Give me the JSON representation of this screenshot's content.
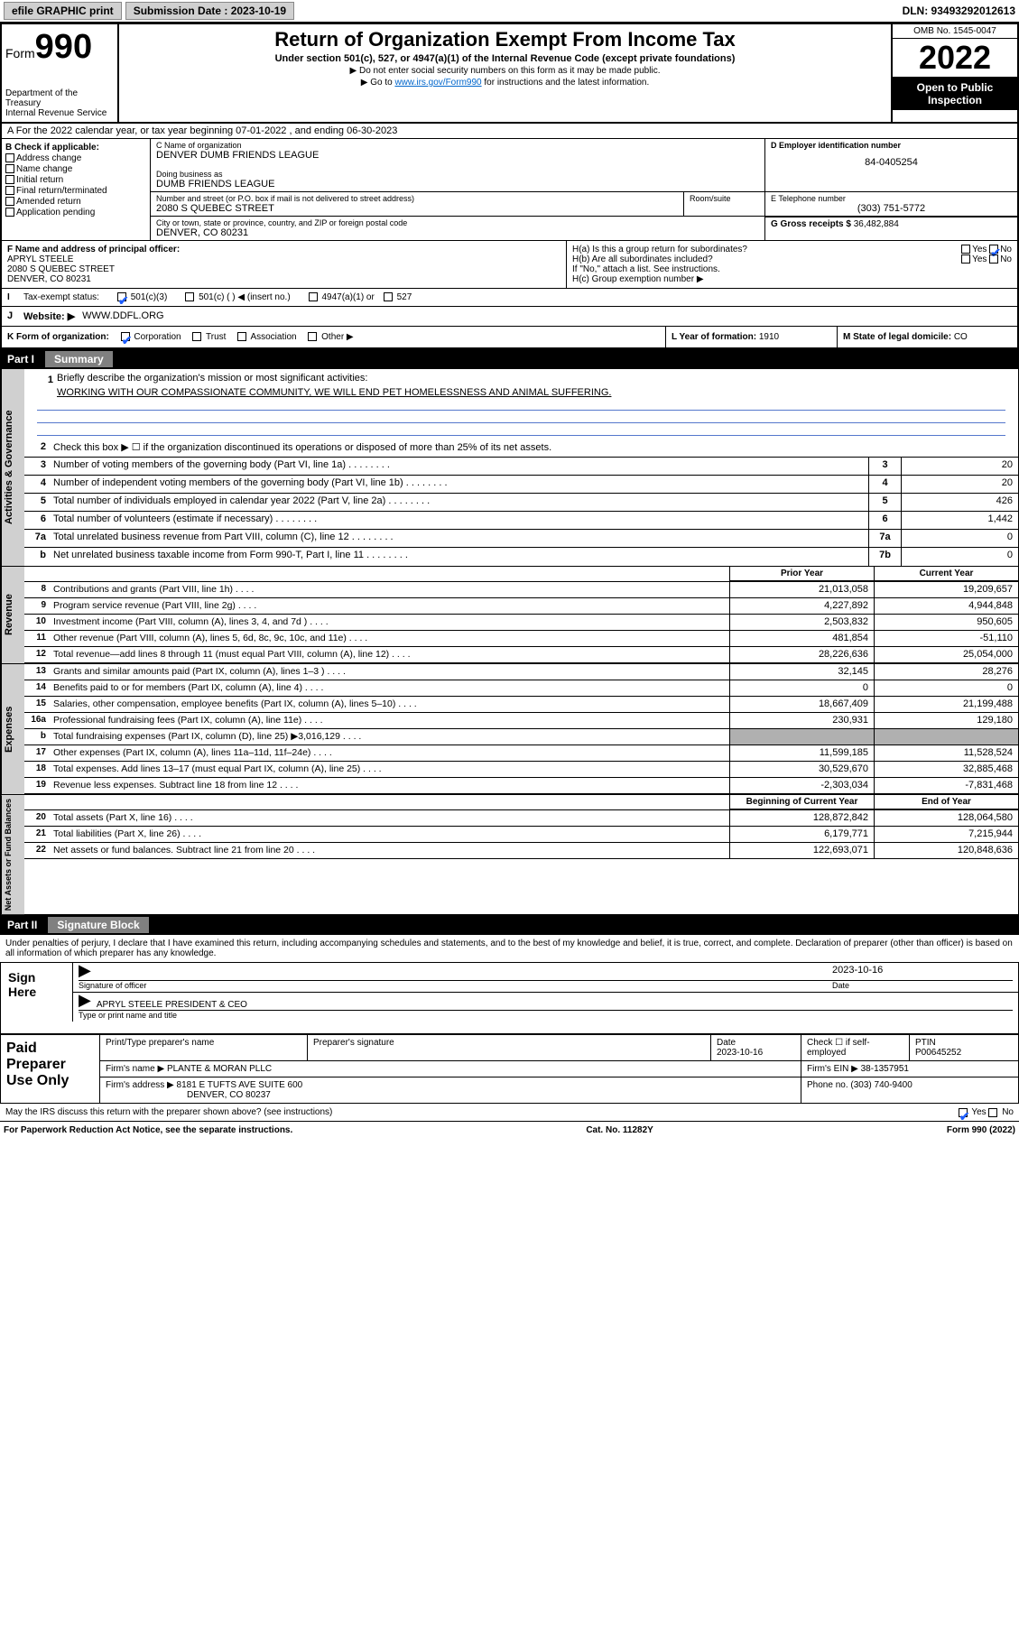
{
  "header": {
    "efile": "efile GRAPHIC print",
    "submission_label": "Submission Date : 2023-10-19",
    "dln": "DLN: 93493292012613"
  },
  "form_header": {
    "form_label": "Form",
    "form_number": "990",
    "title": "Return of Organization Exempt From Income Tax",
    "subtitle": "Under section 501(c), 527, or 4947(a)(1) of the Internal Revenue Code (except private foundations)",
    "note1": "▶ Do not enter social security numbers on this form as it may be made public.",
    "note2_pre": "▶ Go to ",
    "note2_link": "www.irs.gov/Form990",
    "note2_post": " for instructions and the latest information.",
    "dept": "Department of the Treasury\nInternal Revenue Service",
    "omb": "OMB No. 1545-0047",
    "year": "2022",
    "inspection": "Open to Public Inspection"
  },
  "section_a": {
    "tax_year_line": "A For the 2022 calendar year, or tax year beginning 07-01-2022    , and ending 06-30-2023",
    "b_label": "B Check if applicable:",
    "b_items": [
      "Address change",
      "Name change",
      "Initial return",
      "Final return/terminated",
      "Amended return",
      "Application pending"
    ],
    "c_label": "C Name of organization",
    "c_name": "DENVER DUMB FRIENDS LEAGUE",
    "dba_label": "Doing business as",
    "dba": "DUMB FRIENDS LEAGUE",
    "addr_label": "Number and street (or P.O. box if mail is not delivered to street address)",
    "room_label": "Room/suite",
    "addr": "2080 S QUEBEC STREET",
    "city_label": "City or town, state or province, country, and ZIP or foreign postal code",
    "city": "DENVER, CO  80231",
    "d_label": "D Employer identification number",
    "d_val": "84-0405254",
    "e_label": "E Telephone number",
    "e_val": "(303) 751-5772",
    "g_label": "G Gross receipts $",
    "g_val": "36,482,884",
    "f_label": "F Name and address of principal officer:",
    "f_name": "APRYL STEELE",
    "f_addr1": "2080 S QUEBEC STREET",
    "f_addr2": "DENVER, CO  80231",
    "ha_label": "H(a)  Is this a group return for subordinates?",
    "hb_label": "H(b)  Are all subordinates included?",
    "hb_note": "If \"No,\" attach a list. See instructions.",
    "hc_label": "H(c)  Group exemption number ▶",
    "i_label": "Tax-exempt status:",
    "i_501c3": "501(c)(3)",
    "i_501c": "501(c) (   ) ◀ (insert no.)",
    "i_4947": "4947(a)(1) or",
    "i_527": "527",
    "j_label": "Website: ▶",
    "j_val": "WWW.DDFL.ORG",
    "k_label": "K Form of organization:",
    "k_opts": [
      "Corporation",
      "Trust",
      "Association",
      "Other ▶"
    ],
    "l_label": "L Year of formation:",
    "l_val": "1910",
    "m_label": "M State of legal domicile:",
    "m_val": "CO",
    "yes": "Yes",
    "no": "No"
  },
  "part1": {
    "label": "Part I",
    "title": "Summary",
    "line1_label": "Briefly describe the organization's mission or most significant activities:",
    "line1_val": "WORKING WITH OUR COMPASSIONATE COMMUNITY, WE WILL END PET HOMELESSNESS AND ANIMAL SUFFERING.",
    "line2": "Check this box ▶ ☐  if the organization discontinued its operations or disposed of more than 25% of its net assets.",
    "governance_label": "Activities & Governance",
    "revenue_label": "Revenue",
    "expenses_label": "Expenses",
    "netassets_label": "Net Assets or Fund Balances",
    "gov_lines": [
      {
        "n": "3",
        "t": "Number of voting members of the governing body (Part VI, line 1a)",
        "box": "3",
        "v": "20"
      },
      {
        "n": "4",
        "t": "Number of independent voting members of the governing body (Part VI, line 1b)",
        "box": "4",
        "v": "20"
      },
      {
        "n": "5",
        "t": "Total number of individuals employed in calendar year 2022 (Part V, line 2a)",
        "box": "5",
        "v": "426"
      },
      {
        "n": "6",
        "t": "Total number of volunteers (estimate if necessary)",
        "box": "6",
        "v": "1,442"
      },
      {
        "n": "7a",
        "t": "Total unrelated business revenue from Part VIII, column (C), line 12",
        "box": "7a",
        "v": "0"
      },
      {
        "n": "b",
        "t": "Net unrelated business taxable income from Form 990-T, Part I, line 11",
        "box": "7b",
        "v": "0"
      }
    ],
    "prior_year": "Prior Year",
    "current_year": "Current Year",
    "boy": "Beginning of Current Year",
    "eoy": "End of Year",
    "rev_lines": [
      {
        "n": "8",
        "t": "Contributions and grants (Part VIII, line 1h)",
        "p": "21,013,058",
        "c": "19,209,657"
      },
      {
        "n": "9",
        "t": "Program service revenue (Part VIII, line 2g)",
        "p": "4,227,892",
        "c": "4,944,848"
      },
      {
        "n": "10",
        "t": "Investment income (Part VIII, column (A), lines 3, 4, and 7d )",
        "p": "2,503,832",
        "c": "950,605"
      },
      {
        "n": "11",
        "t": "Other revenue (Part VIII, column (A), lines 5, 6d, 8c, 9c, 10c, and 11e)",
        "p": "481,854",
        "c": "-51,110"
      },
      {
        "n": "12",
        "t": "Total revenue—add lines 8 through 11 (must equal Part VIII, column (A), line 12)",
        "p": "28,226,636",
        "c": "25,054,000"
      }
    ],
    "exp_lines": [
      {
        "n": "13",
        "t": "Grants and similar amounts paid (Part IX, column (A), lines 1–3 )",
        "p": "32,145",
        "c": "28,276"
      },
      {
        "n": "14",
        "t": "Benefits paid to or for members (Part IX, column (A), line 4)",
        "p": "0",
        "c": "0"
      },
      {
        "n": "15",
        "t": "Salaries, other compensation, employee benefits (Part IX, column (A), lines 5–10)",
        "p": "18,667,409",
        "c": "21,199,488"
      },
      {
        "n": "16a",
        "t": "Professional fundraising fees (Part IX, column (A), line 11e)",
        "p": "230,931",
        "c": "129,180"
      },
      {
        "n": "b",
        "t": "Total fundraising expenses (Part IX, column (D), line 25) ▶3,016,129",
        "p": "shade",
        "c": "shade"
      },
      {
        "n": "17",
        "t": "Other expenses (Part IX, column (A), lines 11a–11d, 11f–24e)",
        "p": "11,599,185",
        "c": "11,528,524"
      },
      {
        "n": "18",
        "t": "Total expenses. Add lines 13–17 (must equal Part IX, column (A), line 25)",
        "p": "30,529,670",
        "c": "32,885,468"
      },
      {
        "n": "19",
        "t": "Revenue less expenses. Subtract line 18 from line 12",
        "p": "-2,303,034",
        "c": "-7,831,468"
      }
    ],
    "net_lines": [
      {
        "n": "20",
        "t": "Total assets (Part X, line 16)",
        "p": "128,872,842",
        "c": "128,064,580"
      },
      {
        "n": "21",
        "t": "Total liabilities (Part X, line 26)",
        "p": "6,179,771",
        "c": "7,215,944"
      },
      {
        "n": "22",
        "t": "Net assets or fund balances. Subtract line 21 from line 20",
        "p": "122,693,071",
        "c": "120,848,636"
      }
    ]
  },
  "part2": {
    "label": "Part II",
    "title": "Signature Block",
    "declaration": "Under penalties of perjury, I declare that I have examined this return, including accompanying schedules and statements, and to the best of my knowledge and belief, it is true, correct, and complete. Declaration of preparer (other than officer) is based on all information of which preparer has any knowledge.",
    "sign_here": "Sign Here",
    "sig_officer": "Signature of officer",
    "sig_date": "Date",
    "sig_date_val": "2023-10-16",
    "officer_name": "APRYL STEELE PRESIDENT & CEO",
    "type_name": "Type or print name and title",
    "paid_prep": "Paid Preparer Use Only",
    "prep_name_label": "Print/Type preparer's name",
    "prep_sig_label": "Preparer's signature",
    "prep_date_label": "Date",
    "prep_date": "2023-10-16",
    "prep_check": "Check ☐ if self-employed",
    "ptin_label": "PTIN",
    "ptin": "P00645252",
    "firm_name_label": "Firm's name     ▶",
    "firm_name": "PLANTE & MORAN PLLC",
    "firm_ein_label": "Firm's EIN ▶",
    "firm_ein": "38-1357951",
    "firm_addr_label": "Firm's address ▶",
    "firm_addr1": "8181 E TUFTS AVE SUITE 600",
    "firm_addr2": "DENVER, CO  80237",
    "phone_label": "Phone no.",
    "phone": "(303) 740-9400",
    "discuss": "May the IRS discuss this return with the preparer shown above? (see instructions)",
    "paperwork": "For Paperwork Reduction Act Notice, see the separate instructions.",
    "catno": "Cat. No. 11282Y",
    "formno": "Form 990 (2022)"
  }
}
